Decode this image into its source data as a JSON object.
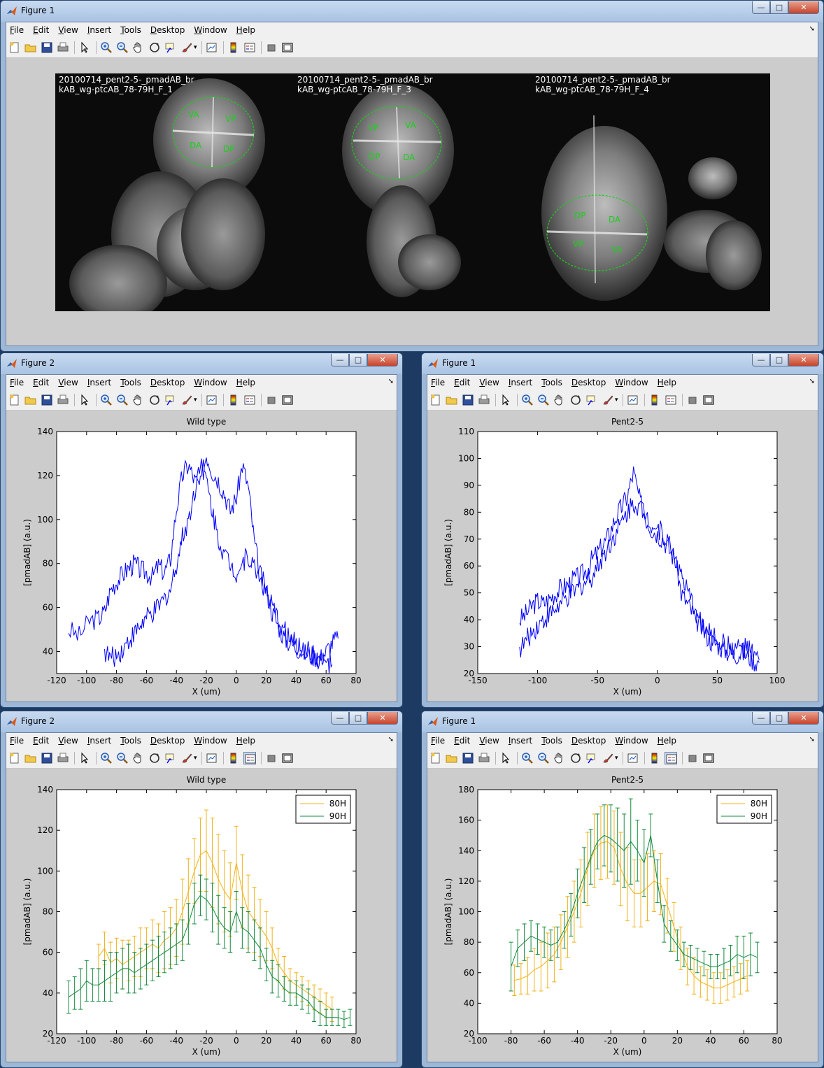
{
  "menu_items": [
    "File",
    "Edit",
    "View",
    "Insert",
    "Tools",
    "Desktop",
    "Window",
    "Help"
  ],
  "colors": {
    "line_blue": "#0000ff",
    "series_80H": "#f0b21a",
    "series_90H": "#128a3c",
    "figure_bg": "#cccccc"
  },
  "toolbar_icons": [
    "new-figure-icon",
    "open-file-icon",
    "save-icon",
    "print-icon",
    "pointer-icon",
    "zoom-in-icon",
    "zoom-out-icon",
    "pan-icon",
    "rotate-3d-icon",
    "data-cursor-icon",
    "brush-icon",
    "link-plot-icon",
    "colorbar-icon",
    "legend-icon",
    "hide-plot-tools-icon",
    "show-plot-tools-icon"
  ],
  "window_controls": {
    "minimize": "—",
    "maximize": "□",
    "close": "✕"
  },
  "top_window": {
    "title": "Figure 1",
    "images": [
      {
        "caption_line1": "20100714_pent2-5-_pmadAB_br",
        "caption_line2": "kAB_wg-ptcAB_78-79H_F_1",
        "regions": [
          "VA",
          "VP",
          "DA",
          "DP"
        ]
      },
      {
        "caption_line1": "20100714_pent2-5-_pmadAB_br",
        "caption_line2": "kAB_wg-ptcAB_78-79H_F_3",
        "regions": [
          "VP",
          "VA",
          "DP",
          "DA"
        ]
      },
      {
        "caption_line1": "20100714_pent2-5-_pmadAB_br",
        "caption_line2": "kAB_wg-ptcAB_78-79H_F_4",
        "regions": [
          "DP",
          "DA",
          "VP",
          "VA"
        ]
      }
    ]
  },
  "windows": [
    {
      "title": "Figure 2",
      "plot": "wt_raw"
    },
    {
      "title": "Figure 1",
      "plot": "pent_raw"
    },
    {
      "title": "Figure 2",
      "plot": "wt_avg"
    },
    {
      "title": "Figure 1",
      "plot": "pent_avg"
    }
  ],
  "chart_data": [
    {
      "id": "wt_raw",
      "type": "line",
      "title": "Wild type",
      "xlabel": "X (um)",
      "ylabel": "[pmadAB] (a.u.)",
      "xlim": [
        -120,
        80
      ],
      "ylim": [
        30,
        140
      ],
      "xticks": [
        -120,
        -100,
        -80,
        -60,
        -40,
        -20,
        0,
        20,
        40,
        60,
        80
      ],
      "yticks": [
        40,
        60,
        80,
        100,
        120,
        140
      ],
      "grid": false,
      "series": [
        {
          "x": [
            -112,
            -105,
            -98,
            -92,
            -88,
            -84,
            -80,
            -76,
            -72,
            -68,
            -64,
            -60,
            -56,
            -52,
            -48,
            -44,
            -40,
            -36,
            -32,
            -28,
            -24,
            -20,
            -16,
            -12,
            -8,
            -4,
            0,
            4,
            8,
            12,
            16,
            20,
            24,
            28,
            32,
            36,
            40,
            44,
            48,
            52,
            56,
            60,
            64,
            68
          ],
          "y": [
            50,
            47,
            54,
            55,
            58,
            68,
            72,
            75,
            78,
            80,
            77,
            76,
            74,
            79,
            76,
            82,
            105,
            120,
            125,
            118,
            115,
            130,
            122,
            118,
            112,
            104,
            110,
            125,
            115,
            90,
            75,
            68,
            58,
            52,
            46,
            44,
            42,
            40,
            39,
            38,
            37,
            40,
            44,
            46
          ]
        },
        {
          "x": [
            -88,
            -84,
            -80,
            -76,
            -72,
            -68,
            -64,
            -60,
            -56,
            -52,
            -48,
            -44,
            -40,
            -36,
            -32,
            -28,
            -24,
            -20,
            -16,
            -12,
            -8,
            -4,
            0,
            4,
            8,
            12,
            16,
            20,
            24,
            28,
            32,
            36,
            40,
            44,
            48,
            52,
            56,
            60,
            64
          ],
          "y": [
            40,
            37,
            38,
            41,
            45,
            48,
            52,
            55,
            57,
            60,
            64,
            68,
            80,
            92,
            100,
            112,
            128,
            118,
            104,
            92,
            84,
            80,
            76,
            80,
            84,
            78,
            74,
            66,
            60,
            54,
            50,
            46,
            43,
            41,
            40,
            38,
            36,
            35,
            34
          ]
        }
      ]
    },
    {
      "id": "pent_raw",
      "type": "line",
      "title": "Pent2-5",
      "xlabel": "X (um)",
      "ylabel": "[pmadAB] (a.u.)",
      "xlim": [
        -150,
        100
      ],
      "ylim": [
        20,
        110
      ],
      "xticks": [
        -150,
        -100,
        -50,
        0,
        50,
        100
      ],
      "yticks": [
        20,
        30,
        40,
        50,
        60,
        70,
        80,
        90,
        100,
        110
      ],
      "grid": false,
      "series": [
        {
          "x": [
            -115,
            -110,
            -105,
            -100,
            -95,
            -90,
            -85,
            -80,
            -75,
            -70,
            -65,
            -60,
            -55,
            -50,
            -45,
            -40,
            -35,
            -30,
            -25,
            -20,
            -15,
            -10,
            -5,
            0,
            5,
            10,
            15,
            20,
            25,
            30,
            35,
            40,
            45,
            50,
            55,
            60,
            65,
            70,
            75,
            80,
            85
          ],
          "y": [
            40,
            42,
            45,
            47,
            46,
            48,
            50,
            52,
            53,
            55,
            56,
            58,
            62,
            65,
            68,
            72,
            78,
            82,
            86,
            95,
            85,
            78,
            74,
            72,
            70,
            66,
            62,
            50,
            46,
            42,
            38,
            35,
            32,
            31,
            29,
            28,
            27,
            28,
            27,
            25,
            24
          ]
        },
        {
          "x": [
            -115,
            -110,
            -105,
            -100,
            -95,
            -90,
            -85,
            -80,
            -75,
            -70,
            -65,
            -60,
            -55,
            -50,
            -45,
            -40,
            -35,
            -30,
            -25,
            -20,
            -15,
            -10,
            -5,
            0,
            5,
            10,
            15,
            20,
            25,
            30,
            35,
            40,
            45,
            50,
            55,
            60,
            65,
            70,
            75,
            80,
            85
          ],
          "y": [
            29,
            32,
            35,
            38,
            40,
            42,
            44,
            46,
            48,
            50,
            52,
            54,
            56,
            60,
            64,
            68,
            72,
            76,
            80,
            84,
            82,
            80,
            76,
            74,
            72,
            68,
            64,
            56,
            50,
            45,
            40,
            36,
            34,
            33,
            31,
            30,
            29,
            30,
            29,
            27,
            25
          ]
        }
      ]
    },
    {
      "id": "wt_avg",
      "type": "line",
      "title": "Wild type",
      "xlabel": "X (um)",
      "ylabel": "[pmadAB] (a.u.)",
      "xlim": [
        -120,
        80
      ],
      "ylim": [
        20,
        140
      ],
      "xticks": [
        -120,
        -100,
        -80,
        -60,
        -40,
        -20,
        0,
        20,
        40,
        60,
        80
      ],
      "yticks": [
        20,
        40,
        60,
        80,
        100,
        120,
        140
      ],
      "grid": false,
      "legend": "top-right",
      "series": [
        {
          "name": "80H",
          "color": "series_80H",
          "x": [
            -92,
            -88,
            -84,
            -80,
            -76,
            -72,
            -68,
            -64,
            -60,
            -56,
            -52,
            -48,
            -44,
            -40,
            -36,
            -32,
            -28,
            -24,
            -20,
            -16,
            -12,
            -8,
            -4,
            0,
            4,
            8,
            12,
            16,
            20,
            24,
            28,
            32,
            36,
            40,
            44,
            48,
            52,
            56,
            60,
            64
          ],
          "y": [
            58,
            62,
            55,
            57,
            54,
            56,
            58,
            60,
            62,
            64,
            62,
            66,
            68,
            72,
            80,
            90,
            100,
            108,
            110,
            104,
            96,
            90,
            86,
            104,
            90,
            80,
            76,
            72,
            68,
            62,
            54,
            50,
            46,
            44,
            42,
            40,
            38,
            36,
            34,
            32
          ],
          "err": [
            6,
            8,
            10,
            10,
            12,
            10,
            10,
            12,
            10,
            12,
            12,
            14,
            14,
            14,
            16,
            16,
            16,
            18,
            20,
            22,
            22,
            20,
            18,
            18,
            18,
            18,
            16,
            14,
            12,
            10,
            8,
            8,
            6,
            6,
            6,
            6,
            6,
            6,
            6,
            6
          ]
        },
        {
          "name": "90H",
          "color": "series_90H",
          "x": [
            -112,
            -108,
            -104,
            -100,
            -96,
            -92,
            -88,
            -84,
            -80,
            -76,
            -72,
            -68,
            -64,
            -60,
            -56,
            -52,
            -48,
            -44,
            -40,
            -36,
            -32,
            -28,
            -24,
            -20,
            -16,
            -12,
            -8,
            -4,
            0,
            4,
            8,
            12,
            16,
            20,
            24,
            28,
            32,
            36,
            40,
            44,
            48,
            52,
            56,
            60,
            64,
            68,
            72,
            76
          ],
          "y": [
            38,
            40,
            42,
            46,
            44,
            44,
            46,
            48,
            50,
            52,
            52,
            50,
            52,
            54,
            56,
            58,
            60,
            62,
            64,
            66,
            74,
            84,
            88,
            86,
            82,
            76,
            72,
            70,
            80,
            72,
            70,
            66,
            62,
            54,
            48,
            46,
            42,
            40,
            40,
            38,
            36,
            32,
            30,
            28,
            28,
            28,
            27,
            28
          ],
          "err": [
            8,
            8,
            10,
            10,
            8,
            8,
            10,
            12,
            10,
            10,
            12,
            10,
            10,
            10,
            10,
            10,
            10,
            10,
            10,
            10,
            10,
            10,
            10,
            10,
            12,
            12,
            10,
            10,
            10,
            10,
            10,
            10,
            10,
            8,
            8,
            8,
            6,
            6,
            6,
            6,
            6,
            6,
            6,
            4,
            4,
            4,
            4,
            4
          ]
        }
      ]
    },
    {
      "id": "pent_avg",
      "type": "line",
      "title": "Pent2-5",
      "xlabel": "X (um)",
      "ylabel": "[pmadAB] (a.u.)",
      "xlim": [
        -100,
        80
      ],
      "ylim": [
        20,
        180
      ],
      "xticks": [
        -100,
        -80,
        -60,
        -40,
        -20,
        0,
        20,
        40,
        60,
        80
      ],
      "yticks": [
        20,
        40,
        60,
        80,
        100,
        120,
        140,
        160,
        180
      ],
      "grid": false,
      "legend": "top-right",
      "series": [
        {
          "name": "80H",
          "color": "series_80H",
          "x": [
            -78,
            -74,
            -70,
            -66,
            -62,
            -58,
            -54,
            -50,
            -46,
            -42,
            -38,
            -34,
            -30,
            -26,
            -22,
            -18,
            -14,
            -10,
            -6,
            -2,
            2,
            6,
            10,
            14,
            18,
            22,
            26,
            30,
            34,
            38,
            42,
            46,
            50,
            54,
            58,
            62
          ],
          "y": [
            55,
            56,
            58,
            62,
            64,
            68,
            72,
            80,
            90,
            100,
            112,
            128,
            140,
            145,
            146,
            142,
            128,
            118,
            112,
            112,
            116,
            120,
            118,
            104,
            90,
            76,
            64,
            58,
            54,
            52,
            50,
            50,
            52,
            54,
            56,
            58
          ],
          "err": [
            10,
            10,
            12,
            14,
            16,
            18,
            18,
            18,
            20,
            20,
            22,
            24,
            24,
            24,
            24,
            24,
            24,
            24,
            22,
            22,
            22,
            20,
            20,
            18,
            16,
            14,
            12,
            12,
            10,
            10,
            10,
            10,
            10,
            10,
            10,
            10
          ]
        },
        {
          "name": "90H",
          "color": "series_90H",
          "x": [
            -80,
            -76,
            -72,
            -68,
            -64,
            -60,
            -56,
            -52,
            -48,
            -44,
            -40,
            -36,
            -32,
            -28,
            -24,
            -20,
            -16,
            -12,
            -8,
            -4,
            0,
            4,
            8,
            12,
            16,
            20,
            24,
            28,
            32,
            36,
            40,
            44,
            48,
            52,
            56,
            60,
            64,
            68
          ],
          "y": [
            64,
            76,
            80,
            84,
            82,
            80,
            78,
            80,
            88,
            98,
            112,
            124,
            136,
            146,
            150,
            148,
            144,
            140,
            146,
            140,
            132,
            150,
            120,
            92,
            84,
            78,
            72,
            70,
            68,
            66,
            64,
            64,
            66,
            68,
            72,
            70,
            72,
            70
          ],
          "err": [
            16,
            12,
            12,
            10,
            10,
            10,
            10,
            10,
            12,
            14,
            16,
            18,
            18,
            18,
            20,
            22,
            24,
            24,
            28,
            20,
            22,
            14,
            14,
            12,
            10,
            10,
            8,
            8,
            8,
            8,
            8,
            8,
            10,
            10,
            12,
            14,
            14,
            10
          ]
        }
      ]
    }
  ]
}
